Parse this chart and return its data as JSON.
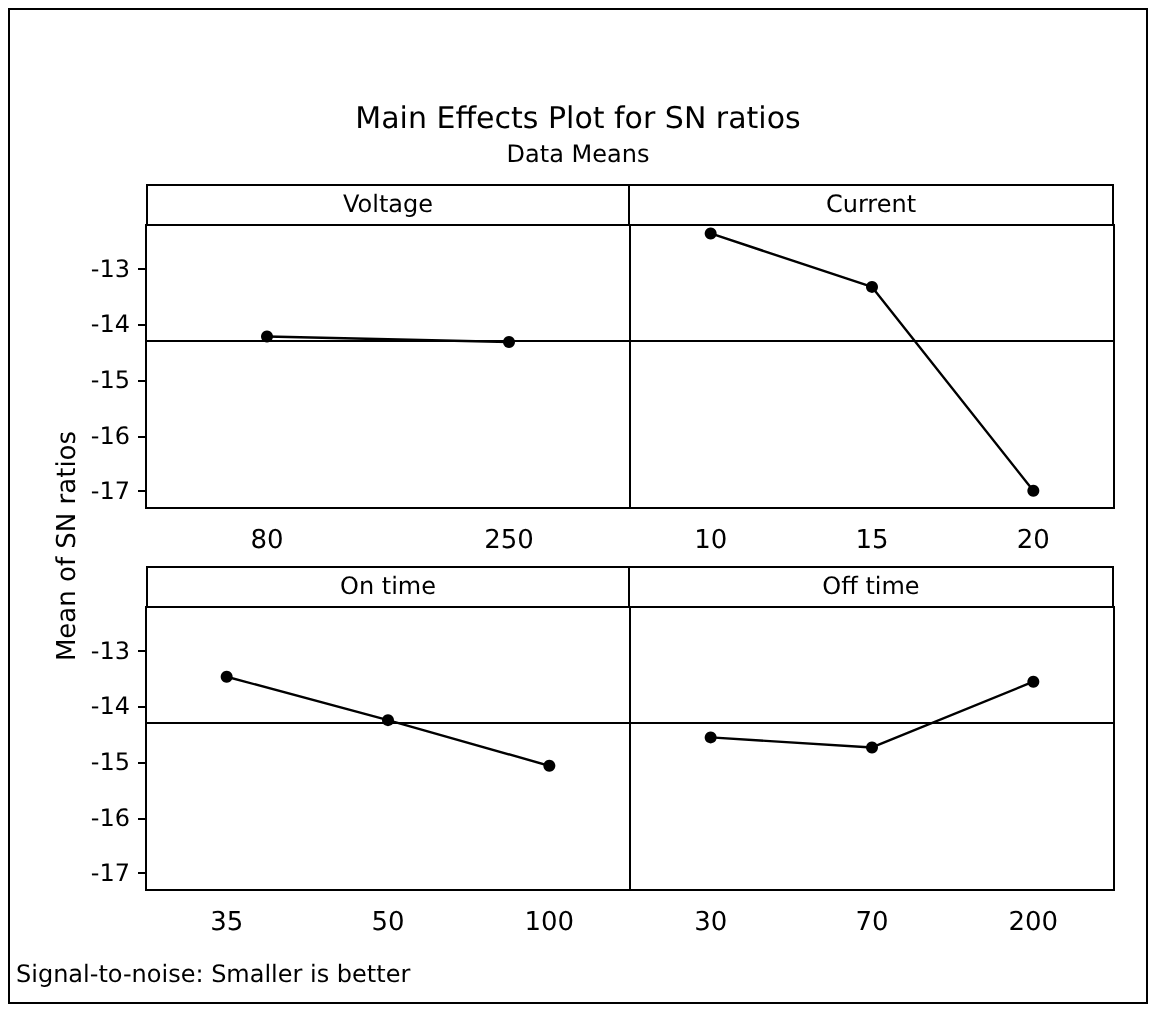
{
  "chart_data": [
    {
      "type": "line",
      "title": "Main Effects Plot for SN ratios",
      "subtitle": "Data Means",
      "ylabel": "Mean of SN ratios",
      "annotations": [
        "Signal-to-noise: Smaller is better"
      ],
      "xlabel": "Voltage",
      "categories": [
        "80",
        "250"
      ],
      "series": [
        {
          "color": "#000000",
          "values": [
            -14.22,
            -14.32
          ]
        }
      ],
      "ylim": [
        -17.3,
        -12.2
      ],
      "yticks": [
        -17,
        -16,
        -15,
        -14,
        -13
      ],
      "ref_lines": [
        {
          "axis": "y",
          "value": -14.28,
          "color": "#000000"
        }
      ],
      "marker": "circle",
      "line_style": "solid",
      "grid": false
    },
    {
      "type": "line",
      "xlabel": "Current",
      "categories": [
        "10",
        "15",
        "20"
      ],
      "series": [
        {
          "color": "#000000",
          "values": [
            -12.37,
            -13.33,
            -16.99
          ]
        }
      ],
      "ylim": [
        -17.3,
        -12.2
      ],
      "yticks": [
        -17,
        -16,
        -15,
        -14,
        -13
      ],
      "tick_labels": "x",
      "ref_lines": [
        {
          "axis": "y",
          "value": -14.28,
          "color": "#000000"
        }
      ],
      "marker": "circle",
      "line_style": "solid",
      "grid": false
    },
    {
      "type": "line",
      "xlabel": "On time",
      "categories": [
        "35",
        "50",
        "100"
      ],
      "series": [
        {
          "color": "#000000",
          "values": [
            -13.47,
            -14.25,
            -15.07
          ]
        }
      ],
      "ylim": [
        -17.3,
        -12.2
      ],
      "yticks": [
        -17,
        -16,
        -15,
        -14,
        -13
      ],
      "ref_lines": [
        {
          "axis": "y",
          "value": -14.28,
          "color": "#000000"
        }
      ],
      "marker": "circle",
      "line_style": "solid",
      "grid": false
    },
    {
      "type": "line",
      "xlabel": "Off time",
      "categories": [
        "30",
        "70",
        "200"
      ],
      "series": [
        {
          "color": "#000000",
          "values": [
            -14.56,
            -14.74,
            -13.56
          ]
        }
      ],
      "ylim": [
        -17.3,
        -12.2
      ],
      "yticks": [
        -17,
        -16,
        -15,
        -14,
        -13
      ],
      "tick_labels": "x",
      "ref_lines": [
        {
          "axis": "y",
          "value": -14.28,
          "color": "#000000"
        }
      ],
      "marker": "circle",
      "line_style": "solid",
      "grid": false
    }
  ]
}
